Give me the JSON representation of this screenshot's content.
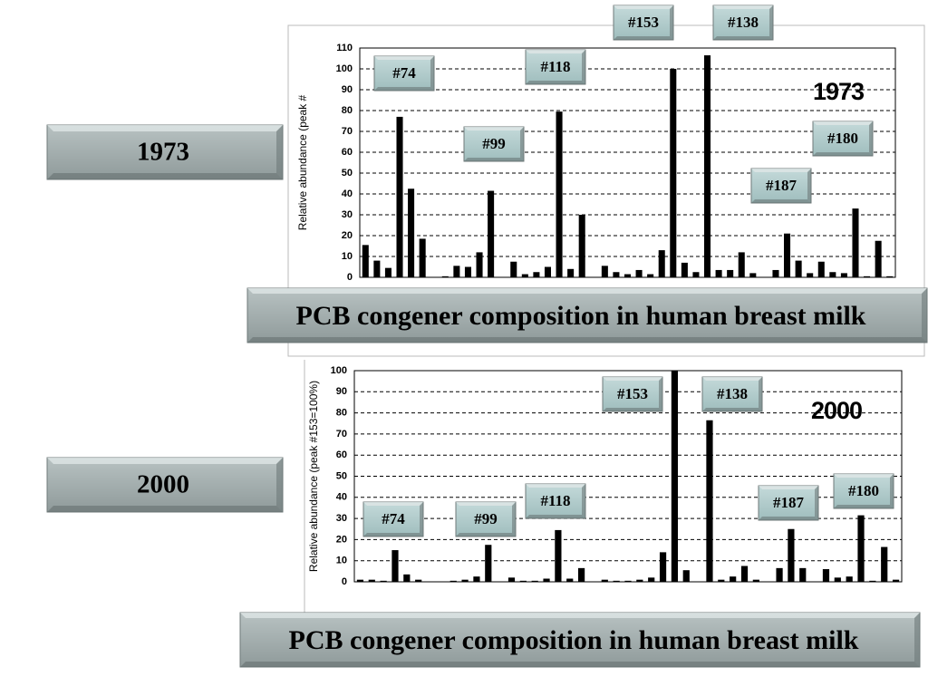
{
  "slide_labels": [
    "1973",
    "2000"
  ],
  "captions": [
    "PCB congener composition in human breast milk",
    "PCB congener composition in human breast milk"
  ],
  "chart_data": [
    {
      "type": "bar",
      "title": "1973",
      "y_label": "Relative abundance (peak #",
      "categories": [
        null,
        null,
        null,
        null,
        null,
        null,
        null,
        null,
        null,
        null,
        null,
        null,
        null,
        null,
        null,
        null,
        null,
        null,
        null,
        null,
        null,
        null,
        null,
        null,
        null,
        null,
        null,
        null,
        null,
        null,
        null,
        null,
        null,
        null,
        null,
        null,
        null,
        null,
        null,
        null,
        null,
        null,
        null,
        null,
        null,
        null,
        null
      ],
      "values": [
        15.5,
        8,
        4.5,
        77,
        42.5,
        18.5,
        0,
        0.5,
        5.5,
        5,
        12,
        41.5,
        0,
        7.5,
        1.5,
        2.5,
        5,
        79.5,
        4,
        30,
        0,
        5.5,
        2.5,
        1.5,
        3.5,
        1.5,
        13,
        100,
        7,
        2.5,
        106.5,
        3.5,
        3.5,
        12,
        2,
        0,
        3.5,
        21,
        8,
        2,
        7.5,
        2.5,
        2,
        33,
        0.5,
        17.5,
        0.5
      ],
      "color": "#000000",
      "ylim": [
        0,
        110
      ],
      "yticks": [
        0,
        10,
        20,
        30,
        40,
        50,
        60,
        70,
        80,
        90,
        100,
        110
      ],
      "grid": true,
      "annotations": [
        "#153",
        "#138",
        "#74",
        "#118",
        "#99",
        "#180",
        "#187"
      ]
    },
    {
      "type": "bar",
      "title": "2000",
      "y_label": "Relative abundance (peak #153=100%)",
      "categories": [
        null,
        null,
        null,
        null,
        null,
        null,
        null,
        null,
        null,
        null,
        null,
        null,
        null,
        null,
        null,
        null,
        null,
        null,
        null,
        null,
        null,
        null,
        null,
        null,
        null,
        null,
        null,
        null,
        null,
        null,
        null,
        null,
        null,
        null,
        null,
        null,
        null,
        null,
        null,
        null,
        null,
        null,
        null,
        null,
        null,
        null,
        null
      ],
      "values": [
        1,
        1,
        0.5,
        15,
        3.5,
        1,
        0,
        0,
        0.5,
        1,
        2.5,
        17.5,
        0,
        2,
        0.5,
        0.5,
        1.5,
        24.5,
        1.5,
        6.5,
        0,
        1,
        0.5,
        0.5,
        1,
        2,
        14,
        100,
        5.5,
        0,
        76.5,
        1,
        2.5,
        7.5,
        1,
        0,
        6.5,
        25,
        6.5,
        0,
        6,
        2,
        2.5,
        31.5,
        0.5,
        16.5,
        1
      ],
      "color": "#000000",
      "ylim": [
        0,
        100
      ],
      "yticks": [
        0,
        10,
        20,
        30,
        40,
        50,
        60,
        70,
        80,
        90,
        100
      ],
      "grid": true,
      "annotations": [
        "#153",
        "#138",
        "#118",
        "#187",
        "#180",
        "#74",
        "#99"
      ]
    }
  ]
}
